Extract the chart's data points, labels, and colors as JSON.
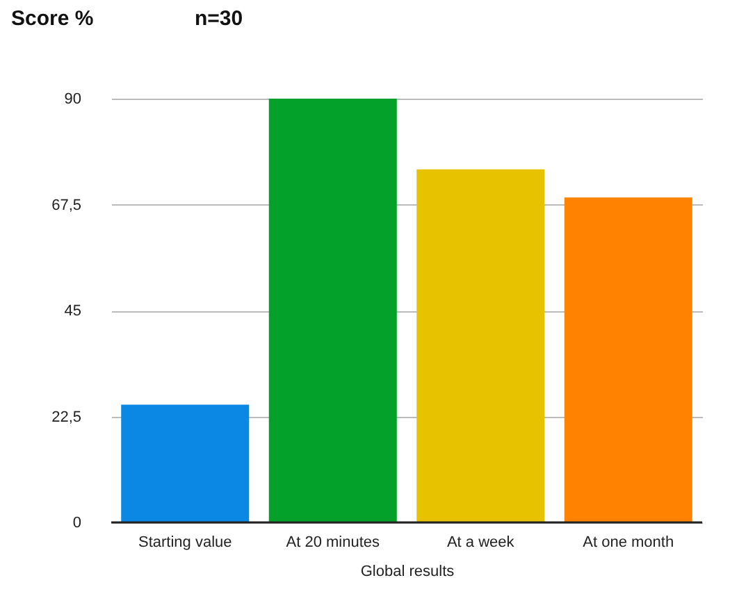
{
  "chart_data": {
    "type": "bar",
    "title": "Score %",
    "annotations": [
      "n=30"
    ],
    "xlabel": "Global results",
    "categories": [
      "Starting value",
      "At 20 minutes",
      "At  a week",
      "At one month"
    ],
    "values": [
      25,
      90,
      75,
      69
    ],
    "colors": [
      "#0a88e4",
      "#03a02a",
      "#e6c200",
      "#ff8200"
    ],
    "ylim": [
      0,
      90
    ],
    "yticks": [
      0,
      {
        "value": 22.5,
        "label": "22,5"
      },
      45,
      {
        "value": 67.5,
        "label": "67,5"
      },
      90
    ],
    "grid": "y"
  }
}
